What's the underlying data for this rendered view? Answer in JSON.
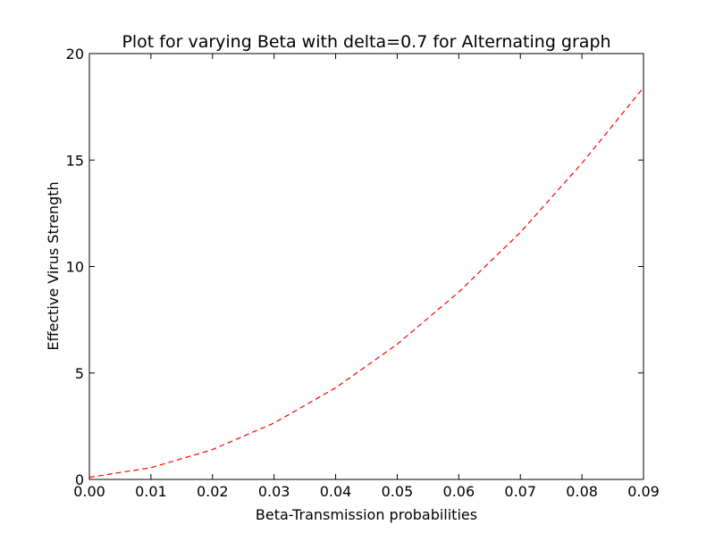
{
  "chart_data": {
    "type": "line",
    "title": "Plot for varying Beta with delta=0.7 for Alternating graph",
    "xlabel": "Beta-Transmission probabilities",
    "ylabel": "Effective Virus Strength",
    "xlim": [
      0.0,
      0.09
    ],
    "ylim": [
      0,
      20
    ],
    "xticks": [
      "0.00",
      "0.01",
      "0.02",
      "0.03",
      "0.04",
      "0.05",
      "0.06",
      "0.07",
      "0.08",
      "0.09"
    ],
    "yticks": [
      "0",
      "5",
      "10",
      "15",
      "20"
    ],
    "grid": false,
    "legend": "none",
    "series": [
      {
        "color": "#ff0000",
        "line_style": "dashed",
        "x": [
          0.0,
          0.01,
          0.02,
          0.03,
          0.04,
          0.05,
          0.06,
          0.07,
          0.08,
          0.09
        ],
        "y": [
          0.1,
          0.55,
          1.4,
          2.65,
          4.3,
          6.35,
          8.8,
          11.6,
          14.85,
          18.4
        ]
      }
    ]
  }
}
